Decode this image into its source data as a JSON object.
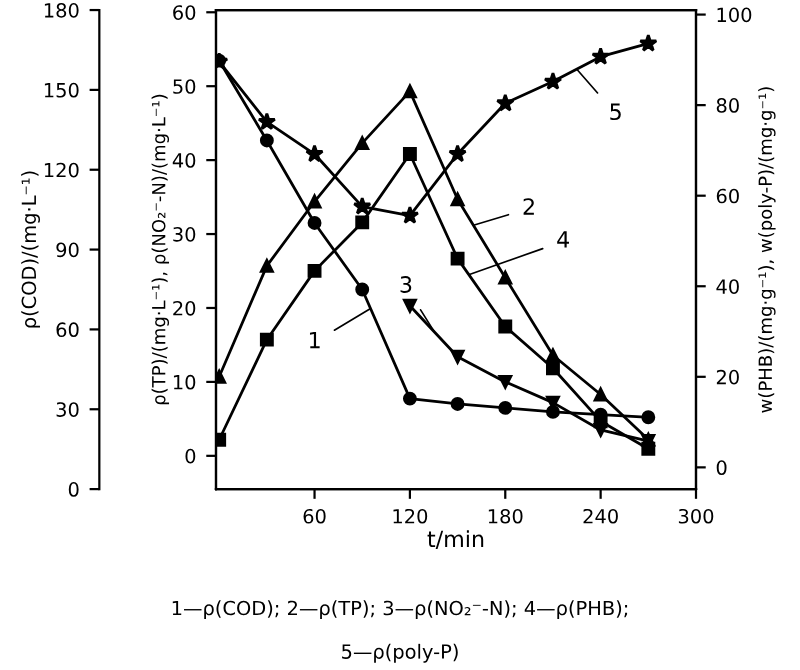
{
  "chart_data": {
    "type": "line",
    "xlabel": "t/min",
    "ylabel": "ρ(TP)/(mg·L⁻¹), ρ(NO₂⁻-N)/(mg·L⁻¹)",
    "y2label": "w(PHB)/(mg·g⁻¹), w(poly-P)/(mg·g⁻¹)",
    "y3label": "ρ(COD)/(mg·L⁻¹)",
    "x": [
      0,
      30,
      60,
      90,
      120,
      150,
      180,
      210,
      240,
      270
    ],
    "xlim": [
      -2,
      300
    ],
    "xticks": [
      60,
      120,
      180,
      240,
      300
    ],
    "ylim": [
      -4.5,
      60.3
    ],
    "yticks": [
      0,
      10,
      20,
      30,
      40,
      50,
      60
    ],
    "y2lim": [
      -4.8,
      101
    ],
    "y2ticks": [
      0,
      20,
      40,
      60,
      80,
      100
    ],
    "y3lim": [
      0,
      180
    ],
    "y3ticks": [
      0,
      30,
      60,
      90,
      120,
      150,
      180
    ],
    "grid": false,
    "legend": false,
    "line_style": "solid",
    "series": [
      {
        "color": "#000000",
        "axis": "y3",
        "marker": "circle",
        "values": [
          161,
          131,
          100,
          75,
          34,
          32,
          30.5,
          29,
          28,
          27
        ]
      },
      {
        "color": "#000000",
        "axis": "y",
        "marker": "triangle",
        "values": [
          10.7,
          25.7,
          34.4,
          42.3,
          49.3,
          34.7,
          24.1,
          13.6,
          8.3,
          2.2
        ]
      },
      {
        "color": "#000000",
        "axis": "y",
        "marker": "triangle_down",
        "values": [
          null,
          null,
          null,
          null,
          20.3,
          13.4,
          10.0,
          7.2,
          3.5,
          2.0
        ]
      },
      {
        "color": "#000000",
        "axis": "y2",
        "marker": "square",
        "values": [
          6.1,
          28.2,
          43.4,
          54.1,
          69.2,
          46.1,
          31.1,
          21.9,
          10.2,
          4.1
        ]
      },
      {
        "color": "#000000",
        "axis": "y2",
        "marker": "star",
        "values": [
          89.6,
          76.3,
          69.2,
          57.6,
          55.6,
          69.2,
          80.4,
          85.2,
          90.7,
          93.6
        ]
      }
    ],
    "annotations": [
      {
        "text": "1",
        "x": 95,
        "y": 19.9
      },
      {
        "text": "2",
        "x": 160,
        "y": 31.2
      },
      {
        "text": "3",
        "x": 135,
        "y": 16.9
      },
      {
        "text": "4",
        "x": 157,
        "y": 24.5
      },
      {
        "text": "5",
        "x": 225,
        "y": 52.3
      },
      "1—ρ(COD); 2—ρ(TP); 3—ρ(NO₂⁻-N); 4—ρ(PHB);",
      "5—ρ(poly-P)"
    ]
  }
}
